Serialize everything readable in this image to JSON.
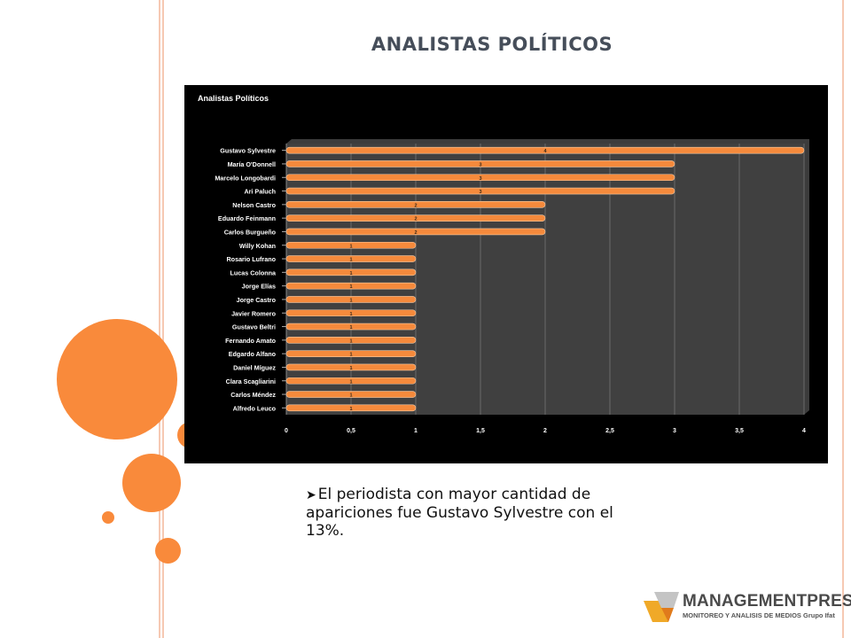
{
  "slide": {
    "title": "ANALISTAS POLÍTICOS",
    "bullet_text": "El periodista con mayor cantidad de apariciones fue Gustavo Sylvestre con el 13%.",
    "accent_color": "#f98a3b"
  },
  "logo": {
    "name": "MANAGEMENTPRESS",
    "tagline": "MONITOREO Y ANALISIS DE MEDIOS Grupo Ifat"
  },
  "chart_data": {
    "type": "bar",
    "orientation": "horizontal",
    "title": "Analistas Políticos",
    "categories": [
      "Gustavo Sylvestre",
      "María O'Donnell",
      "Marcelo Longobardi",
      "Ari Paluch",
      "Nelson Castro",
      "Eduardo Feinmann",
      "Carlos Burgueño",
      "Willy Kohan",
      "Rosario Lufrano",
      "Lucas Colonna",
      "Jorge Elías",
      "Jorge Castro",
      "Javier Romero",
      "Gustavo Beltri",
      "Fernando Amato",
      "Edgardo Alfano",
      "Daniel Míguez",
      "Clara Scagliarini",
      "Carlos Méndez",
      "Alfredo Leuco"
    ],
    "values": [
      4,
      3,
      3,
      3,
      2,
      2,
      2,
      1,
      1,
      1,
      1,
      1,
      1,
      1,
      1,
      1,
      1,
      1,
      1,
      1
    ],
    "xlim": [
      0,
      4
    ],
    "xticks": [
      "0",
      "0,5",
      "1",
      "1,5",
      "2",
      "2,5",
      "3",
      "3,5",
      "4"
    ],
    "grid": true,
    "data_labels": true,
    "bar_color": "#f58a3c",
    "background": "#000000",
    "plot_background": "#404040"
  }
}
